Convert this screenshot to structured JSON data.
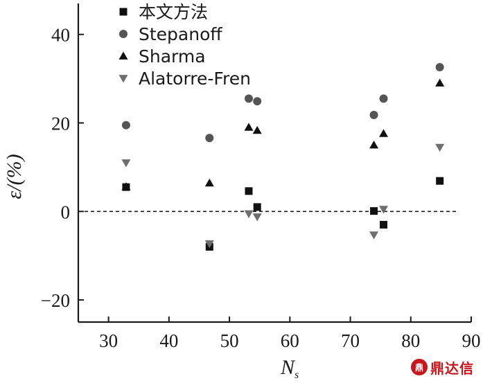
{
  "chart_data": {
    "type": "scatter",
    "xlim": [
      25,
      90
    ],
    "ylim": [
      -25,
      47
    ],
    "x_ticks": [
      30,
      40,
      50,
      60,
      70,
      80,
      90
    ],
    "y_ticks": [
      -20,
      0,
      20,
      40
    ],
    "x_tick_labels": [
      "30",
      "40",
      "50",
      "60",
      "70",
      "80",
      "90"
    ],
    "y_tick_labels": [
      "−20",
      "0",
      "20",
      "40"
    ],
    "xlabel": "N",
    "xlabel_sub": "s",
    "ylabel": "ε/(%)",
    "reference_line": {
      "y": 0,
      "style": "dashed"
    },
    "legend_position": "top-left",
    "series": [
      {
        "name": "本文方法",
        "marker": "square",
        "color": "#111111",
        "points": [
          [
            32.9,
            5.5
          ],
          [
            46.7,
            -8.0
          ],
          [
            53.2,
            4.6
          ],
          [
            54.6,
            1.0
          ],
          [
            73.9,
            0.1
          ],
          [
            75.5,
            -3.0
          ],
          [
            84.8,
            6.9
          ]
        ]
      },
      {
        "name": "Stepanoff",
        "marker": "circle",
        "color": "#555555",
        "points": [
          [
            32.9,
            19.5
          ],
          [
            46.7,
            16.6
          ],
          [
            53.2,
            25.5
          ],
          [
            54.6,
            24.9
          ],
          [
            73.9,
            21.8
          ],
          [
            75.5,
            25.5
          ],
          [
            84.8,
            32.6
          ]
        ]
      },
      {
        "name": "Sharma",
        "marker": "triangle-up",
        "color": "#111111",
        "points": [
          [
            32.9,
            5.6
          ],
          [
            46.7,
            6.4
          ],
          [
            53.2,
            19.0
          ],
          [
            54.6,
            18.3
          ],
          [
            73.9,
            15.0
          ],
          [
            75.5,
            17.6
          ],
          [
            84.8,
            29.0
          ]
        ]
      },
      {
        "name": "Alatorre-Fren",
        "marker": "triangle-down",
        "color": "#6e6e6e",
        "points": [
          [
            32.9,
            11.0
          ],
          [
            46.7,
            -7.3
          ],
          [
            53.2,
            -0.5
          ],
          [
            54.6,
            -1.2
          ],
          [
            73.9,
            -5.3
          ],
          [
            75.5,
            0.5
          ],
          [
            84.8,
            14.5
          ]
        ]
      }
    ]
  },
  "watermark": {
    "logo_text": "鼎",
    "text": "鼎达信"
  }
}
